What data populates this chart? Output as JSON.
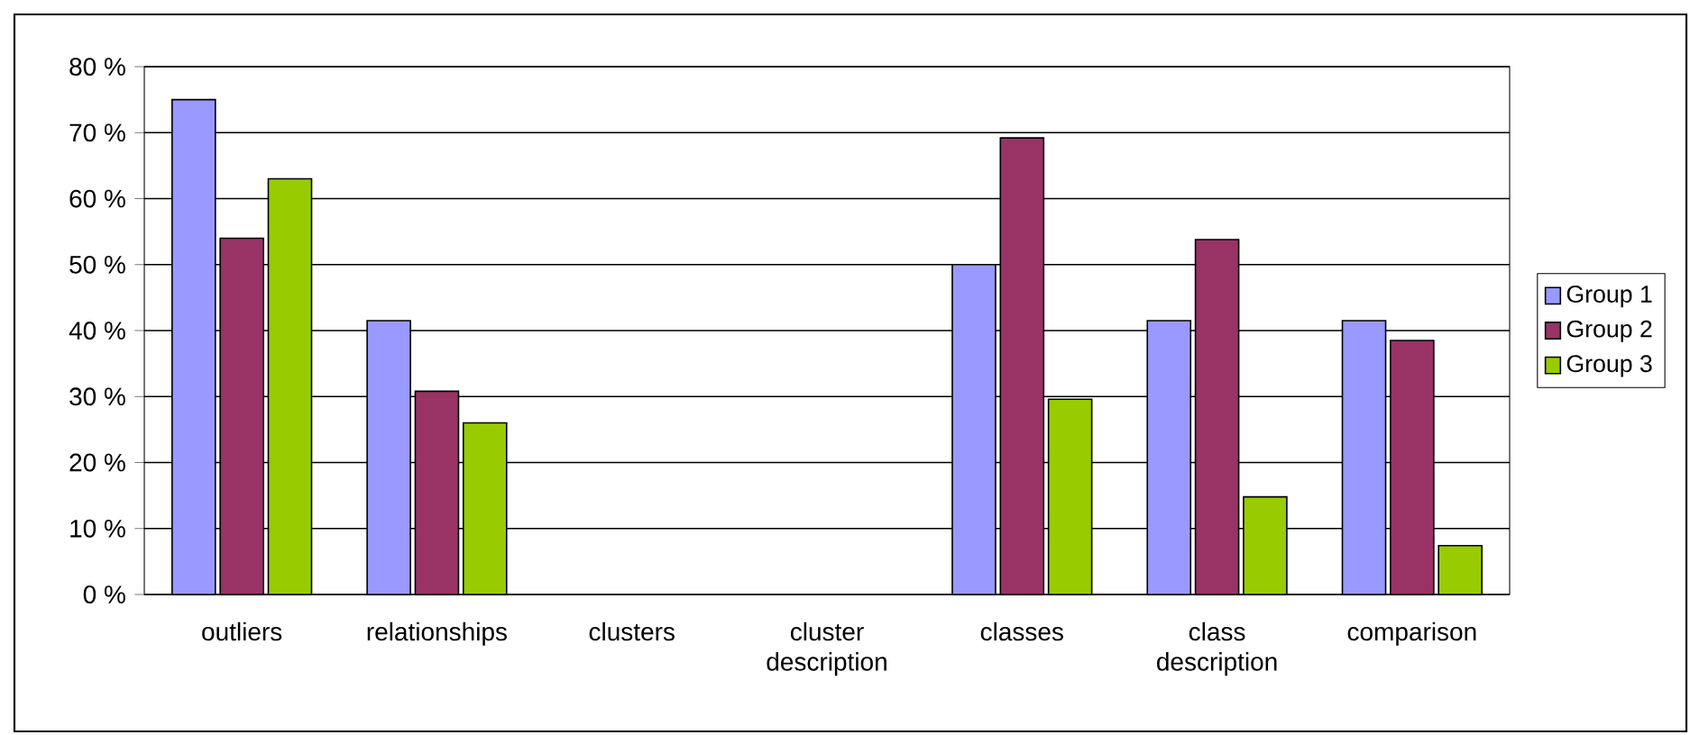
{
  "chart_data": {
    "type": "bar",
    "categories": [
      "outliers",
      "relationships",
      "clusters",
      "cluster description",
      "classes",
      "class description",
      "comparison"
    ],
    "series": [
      {
        "name": "Group 1",
        "color": "#9999ff",
        "values": [
          75,
          41.5,
          null,
          null,
          50,
          41.5,
          41.5
        ]
      },
      {
        "name": "Group 2",
        "color": "#993366",
        "values": [
          54,
          30.8,
          null,
          null,
          69.2,
          53.8,
          38.5
        ]
      },
      {
        "name": "Group 3",
        "color": "#99cc00",
        "values": [
          63,
          26,
          null,
          null,
          29.6,
          14.8,
          7.4
        ]
      }
    ],
    "ylim": [
      0,
      80
    ],
    "yticks": [
      {
        "value": 0,
        "label": "0 %"
      },
      {
        "value": 10,
        "label": "10 %"
      },
      {
        "value": 20,
        "label": "20 %"
      },
      {
        "value": 30,
        "label": "30 %"
      },
      {
        "value": 40,
        "label": "40 %"
      },
      {
        "value": 50,
        "label": "50 %"
      },
      {
        "value": 60,
        "label": "60 %"
      },
      {
        "value": 70,
        "label": "70 %"
      },
      {
        "value": 80,
        "label": "80 %"
      }
    ],
    "grid": "y",
    "legend": "right"
  }
}
